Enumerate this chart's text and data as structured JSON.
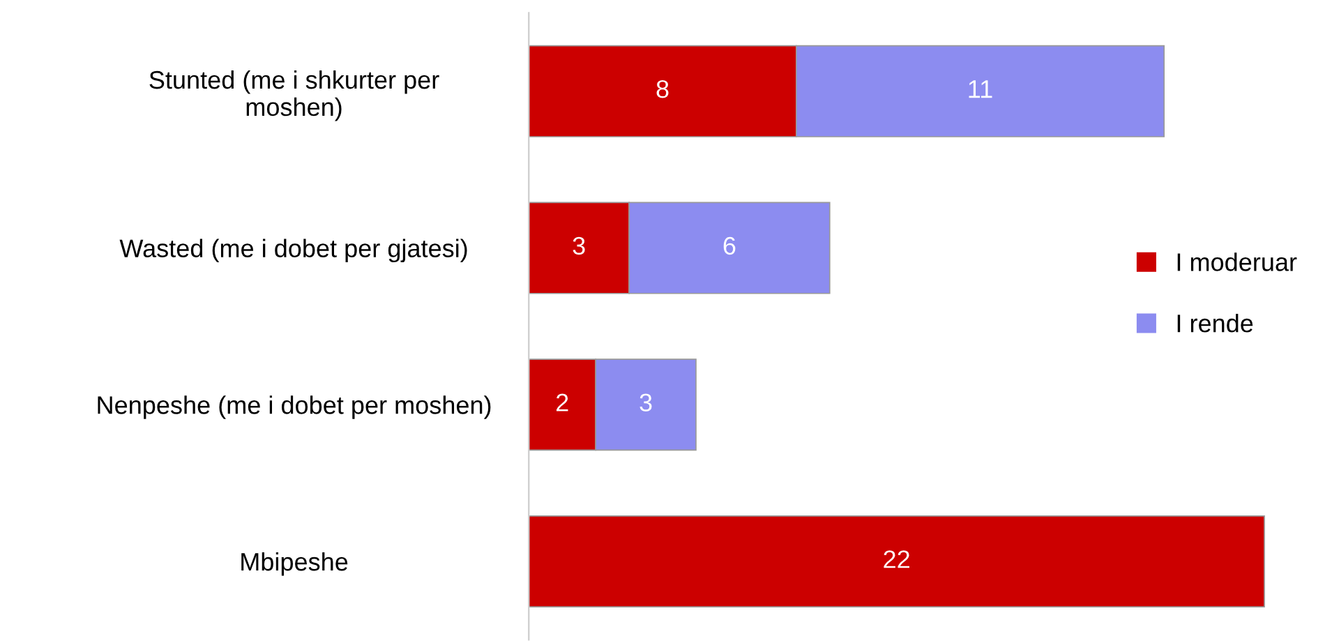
{
  "chart_data": {
    "type": "bar",
    "orientation": "horizontal",
    "stacked": true,
    "categories": [
      "Stunted (me i shkurter per moshen)",
      "Wasted (me i dobet per gjatesi)",
      "Nenpeshe (me i dobet per moshen)",
      "Mbipeshe"
    ],
    "series": [
      {
        "name": "I moderuar",
        "color": "#cc0000",
        "values": [
          8,
          3,
          2,
          22
        ]
      },
      {
        "name": "I rende",
        "color": "#8c8cf0",
        "values": [
          11,
          6,
          3,
          null
        ]
      }
    ],
    "data_labels": true,
    "legend": "right",
    "grid": false
  }
}
